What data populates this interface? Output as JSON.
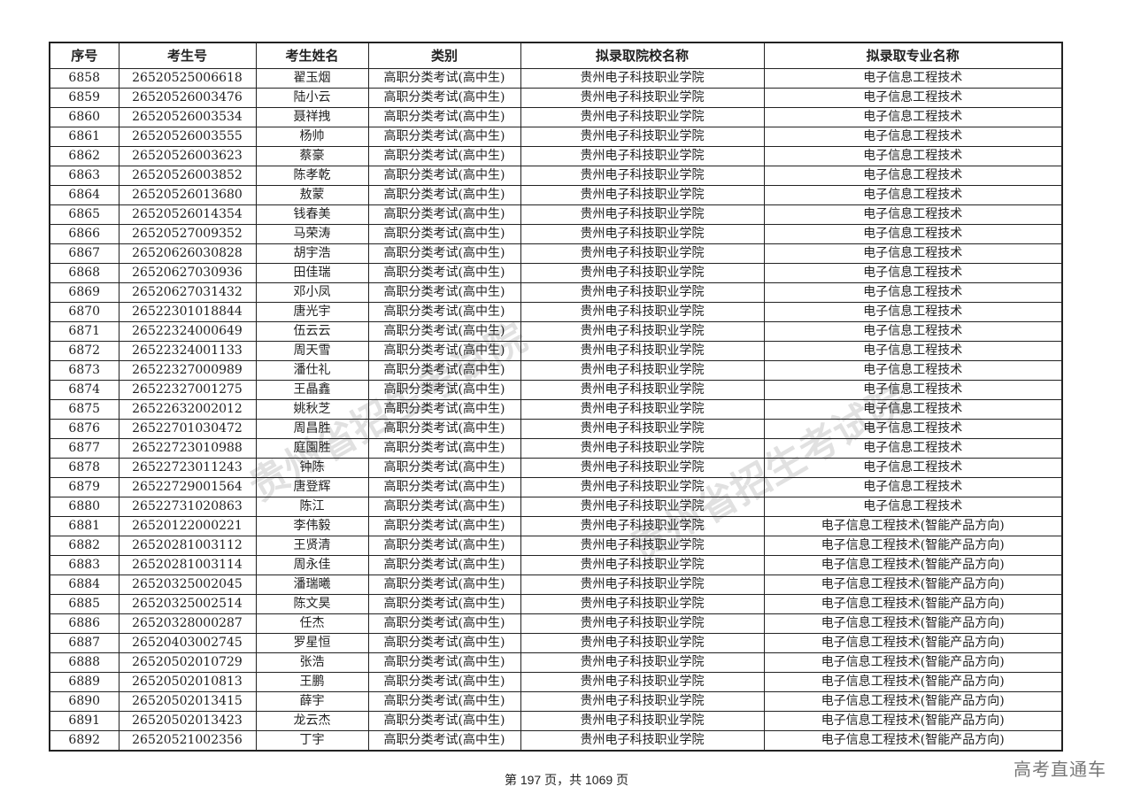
{
  "headers": [
    "序号",
    "考生号",
    "考生姓名",
    "类别",
    "拟录取院校名称",
    "拟录取专业名称"
  ],
  "rows": [
    [
      "6858",
      "26520525006618",
      "翟玉烟",
      "高职分类考试(高中生)",
      "贵州电子科技职业学院",
      "电子信息工程技术"
    ],
    [
      "6859",
      "26520526003476",
      "陆小云",
      "高职分类考试(高中生)",
      "贵州电子科技职业学院",
      "电子信息工程技术"
    ],
    [
      "6860",
      "26520526003534",
      "聂祥拽",
      "高职分类考试(高中生)",
      "贵州电子科技职业学院",
      "电子信息工程技术"
    ],
    [
      "6861",
      "26520526003555",
      "杨帅",
      "高职分类考试(高中生)",
      "贵州电子科技职业学院",
      "电子信息工程技术"
    ],
    [
      "6862",
      "26520526003623",
      "蔡豪",
      "高职分类考试(高中生)",
      "贵州电子科技职业学院",
      "电子信息工程技术"
    ],
    [
      "6863",
      "26520526003852",
      "陈孝乾",
      "高职分类考试(高中生)",
      "贵州电子科技职业学院",
      "电子信息工程技术"
    ],
    [
      "6864",
      "26520526013680",
      "敖蒙",
      "高职分类考试(高中生)",
      "贵州电子科技职业学院",
      "电子信息工程技术"
    ],
    [
      "6865",
      "26520526014354",
      "钱春美",
      "高职分类考试(高中生)",
      "贵州电子科技职业学院",
      "电子信息工程技术"
    ],
    [
      "6866",
      "26520527009352",
      "马荣涛",
      "高职分类考试(高中生)",
      "贵州电子科技职业学院",
      "电子信息工程技术"
    ],
    [
      "6867",
      "26520626030828",
      "胡宇浩",
      "高职分类考试(高中生)",
      "贵州电子科技职业学院",
      "电子信息工程技术"
    ],
    [
      "6868",
      "26520627030936",
      "田佳瑞",
      "高职分类考试(高中生)",
      "贵州电子科技职业学院",
      "电子信息工程技术"
    ],
    [
      "6869",
      "26520627031432",
      "邓小凤",
      "高职分类考试(高中生)",
      "贵州电子科技职业学院",
      "电子信息工程技术"
    ],
    [
      "6870",
      "26522301018844",
      "唐光宇",
      "高职分类考试(高中生)",
      "贵州电子科技职业学院",
      "电子信息工程技术"
    ],
    [
      "6871",
      "26522324000649",
      "伍云云",
      "高职分类考试(高中生)",
      "贵州电子科技职业学院",
      "电子信息工程技术"
    ],
    [
      "6872",
      "26522324001133",
      "周天雪",
      "高职分类考试(高中生)",
      "贵州电子科技职业学院",
      "电子信息工程技术"
    ],
    [
      "6873",
      "26522327000989",
      "潘仕礼",
      "高职分类考试(高中生)",
      "贵州电子科技职业学院",
      "电子信息工程技术"
    ],
    [
      "6874",
      "26522327001275",
      "王晶鑫",
      "高职分类考试(高中生)",
      "贵州电子科技职业学院",
      "电子信息工程技术"
    ],
    [
      "6875",
      "26522632002012",
      "姚秋芝",
      "高职分类考试(高中生)",
      "贵州电子科技职业学院",
      "电子信息工程技术"
    ],
    [
      "6876",
      "26522701030472",
      "周昌胜",
      "高职分类考试(高中生)",
      "贵州电子科技职业学院",
      "电子信息工程技术"
    ],
    [
      "6877",
      "26522723010988",
      "庭園胜",
      "高职分类考试(高中生)",
      "贵州电子科技职业学院",
      "电子信息工程技术"
    ],
    [
      "6878",
      "26522723011243",
      "钟陈",
      "高职分类考试(高中生)",
      "贵州电子科技职业学院",
      "电子信息工程技术"
    ],
    [
      "6879",
      "26522729001564",
      "唐登辉",
      "高职分类考试(高中生)",
      "贵州电子科技职业学院",
      "电子信息工程技术"
    ],
    [
      "6880",
      "26522731020863",
      "陈江",
      "高职分类考试(高中生)",
      "贵州电子科技职业学院",
      "电子信息工程技术"
    ],
    [
      "6881",
      "26520122000221",
      "李伟毅",
      "高职分类考试(高中生)",
      "贵州电子科技职业学院",
      "电子信息工程技术(智能产品方向)"
    ],
    [
      "6882",
      "26520281003112",
      "王贤清",
      "高职分类考试(高中生)",
      "贵州电子科技职业学院",
      "电子信息工程技术(智能产品方向)"
    ],
    [
      "6883",
      "26520281003114",
      "周永佳",
      "高职分类考试(高中生)",
      "贵州电子科技职业学院",
      "电子信息工程技术(智能产品方向)"
    ],
    [
      "6884",
      "26520325002045",
      "潘瑞曦",
      "高职分类考试(高中生)",
      "贵州电子科技职业学院",
      "电子信息工程技术(智能产品方向)"
    ],
    [
      "6885",
      "26520325002514",
      "陈文昊",
      "高职分类考试(高中生)",
      "贵州电子科技职业学院",
      "电子信息工程技术(智能产品方向)"
    ],
    [
      "6886",
      "26520328000287",
      "任杰",
      "高职分类考试(高中生)",
      "贵州电子科技职业学院",
      "电子信息工程技术(智能产品方向)"
    ],
    [
      "6887",
      "26520403002745",
      "罗星恒",
      "高职分类考试(高中生)",
      "贵州电子科技职业学院",
      "电子信息工程技术(智能产品方向)"
    ],
    [
      "6888",
      "26520502010729",
      "张浩",
      "高职分类考试(高中生)",
      "贵州电子科技职业学院",
      "电子信息工程技术(智能产品方向)"
    ],
    [
      "6889",
      "26520502010813",
      "王鹏",
      "高职分类考试(高中生)",
      "贵州电子科技职业学院",
      "电子信息工程技术(智能产品方向)"
    ],
    [
      "6890",
      "26520502013415",
      "薛宇",
      "高职分类考试(高中生)",
      "贵州电子科技职业学院",
      "电子信息工程技术(智能产品方向)"
    ],
    [
      "6891",
      "26520502013423",
      "龙云杰",
      "高职分类考试(高中生)",
      "贵州电子科技职业学院",
      "电子信息工程技术(智能产品方向)"
    ],
    [
      "6892",
      "26520521002356",
      "丁宇",
      "高职分类考试(高中生)",
      "贵州电子科技职业学院",
      "电子信息工程技术(智能产品方向)"
    ]
  ],
  "footer": {
    "page_text": "第 197 页，共 1069 页"
  },
  "brand": "高考直通车",
  "watermark": "贵州省招生考试院"
}
